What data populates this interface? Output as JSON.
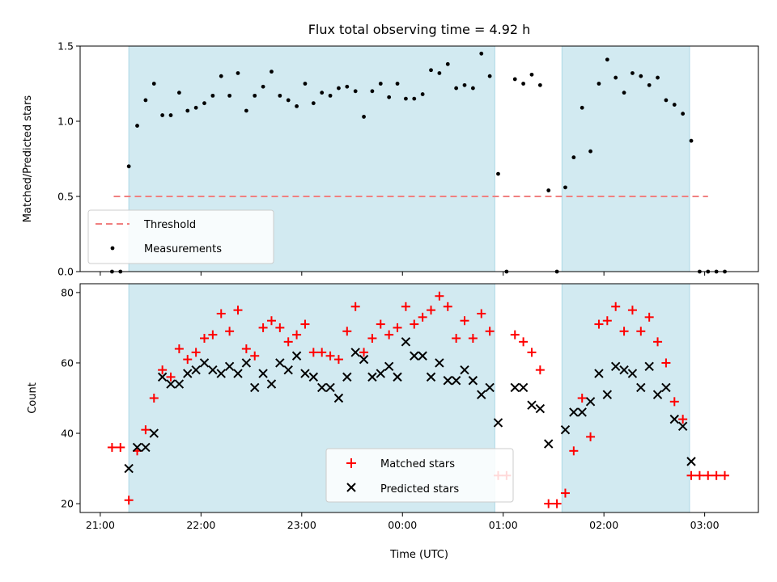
{
  "chart_data": {
    "title": "Flux total observing time = 4.92 h",
    "xlabel": "Time (UTC)",
    "x_ticks": [
      "21:00",
      "22:00",
      "23:00",
      "00:00",
      "01:00",
      "02:00",
      "03:00"
    ],
    "x_tick_minutes": [
      0,
      60,
      120,
      180,
      240,
      300,
      360
    ],
    "x_range_minutes": [
      -12,
      392
    ],
    "shaded_intervals": [
      [
        "21:17",
        "00:55"
      ],
      [
        "01:35",
        "02:51"
      ]
    ],
    "shade_color": "#add8e6",
    "panels": [
      {
        "type": "scatter",
        "ylabel": "Matched/Predicted stars",
        "ylim": [
          0,
          1.5
        ],
        "yticks": [
          0.0,
          0.5,
          1.0,
          1.5
        ],
        "y_tick_labels": [
          "0.0",
          "0.5",
          "1.0",
          "1.5"
        ],
        "legend_position": "lower-left",
        "threshold": {
          "name": "Threshold",
          "value": 0.5,
          "x_start": "21:08",
          "x_end": "03:02",
          "color": "#f08080"
        },
        "series": [
          {
            "name": "Measurements",
            "marker": "dot",
            "color": "#000000",
            "x": [
              "21:07",
              "21:12",
              "21:17",
              "21:22",
              "21:27",
              "21:32",
              "21:37",
              "21:42",
              "21:47",
              "21:52",
              "21:57",
              "22:02",
              "22:07",
              "22:12",
              "22:17",
              "22:22",
              "22:27",
              "22:32",
              "22:37",
              "22:42",
              "22:47",
              "22:52",
              "22:57",
              "23:02",
              "23:07",
              "23:12",
              "23:17",
              "23:22",
              "23:27",
              "23:32",
              "23:37",
              "23:42",
              "23:47",
              "23:52",
              "23:57",
              "00:02",
              "00:07",
              "00:12",
              "00:17",
              "00:22",
              "00:27",
              "00:32",
              "00:37",
              "00:42",
              "00:47",
              "00:52",
              "00:57",
              "01:02",
              "01:07",
              "01:12",
              "01:17",
              "01:22",
              "01:27",
              "01:32",
              "01:37",
              "01:42",
              "01:47",
              "01:52",
              "01:57",
              "02:02",
              "02:07",
              "02:12",
              "02:17",
              "02:22",
              "02:27",
              "02:32",
              "02:37",
              "02:42",
              "02:47",
              "02:52",
              "02:57",
              "03:02",
              "03:07",
              "03:12"
            ],
            "y": [
              0.0,
              0.0,
              0.7,
              0.97,
              1.14,
              1.25,
              1.04,
              1.04,
              1.19,
              1.07,
              1.09,
              1.12,
              1.17,
              1.3,
              1.17,
              1.32,
              1.07,
              1.17,
              1.23,
              1.33,
              1.17,
              1.14,
              1.1,
              1.25,
              1.12,
              1.19,
              1.17,
              1.22,
              1.23,
              1.2,
              1.03,
              1.2,
              1.25,
              1.16,
              1.25,
              1.15,
              1.15,
              1.18,
              1.34,
              1.32,
              1.38,
              1.22,
              1.24,
              1.22,
              1.45,
              1.3,
              0.65,
              0.0,
              1.28,
              1.25,
              1.31,
              1.24,
              0.54,
              0.0,
              0.56,
              0.76,
              1.09,
              0.8,
              1.25,
              1.41,
              1.29,
              1.19,
              1.32,
              1.3,
              1.24,
              1.29,
              1.14,
              1.11,
              1.05,
              0.87,
              0.0,
              0.0,
              0.0,
              0.0
            ]
          }
        ]
      },
      {
        "type": "scatter",
        "ylabel": "Count",
        "ylim": [
          17.5,
          82.5
        ],
        "yticks": [
          20,
          40,
          60,
          80
        ],
        "y_tick_labels": [
          "20",
          "40",
          "60",
          "80"
        ],
        "legend_position": "lower-center",
        "series": [
          {
            "name": "Matched stars",
            "marker": "plus",
            "color": "#ff0000",
            "x": [
              "21:07",
              "21:12",
              "21:17",
              "21:22",
              "21:27",
              "21:32",
              "21:37",
              "21:42",
              "21:47",
              "21:52",
              "21:57",
              "22:02",
              "22:07",
              "22:12",
              "22:17",
              "22:22",
              "22:27",
              "22:32",
              "22:37",
              "22:42",
              "22:47",
              "22:52",
              "22:57",
              "23:02",
              "23:07",
              "23:12",
              "23:17",
              "23:22",
              "23:27",
              "23:32",
              "23:37",
              "23:42",
              "23:47",
              "23:52",
              "23:57",
              "00:02",
              "00:07",
              "00:12",
              "00:17",
              "00:22",
              "00:27",
              "00:32",
              "00:37",
              "00:42",
              "00:47",
              "00:52",
              "00:57",
              "01:02",
              "01:07",
              "01:12",
              "01:17",
              "01:22",
              "01:27",
              "01:32",
              "01:37",
              "01:42",
              "01:47",
              "01:52",
              "01:57",
              "02:02",
              "02:07",
              "02:12",
              "02:17",
              "02:22",
              "02:27",
              "02:32",
              "02:37",
              "02:42",
              "02:47",
              "02:52",
              "02:57",
              "03:02",
              "03:07",
              "03:12"
            ],
            "y": [
              36,
              36,
              21,
              35,
              41,
              50,
              58,
              56,
              64,
              61,
              63,
              67,
              68,
              74,
              69,
              75,
              64,
              62,
              70,
              72,
              70,
              66,
              68,
              71,
              63,
              63,
              62,
              61,
              69,
              76,
              63,
              67,
              71,
              68,
              70,
              76,
              71,
              73,
              75,
              79,
              76,
              67,
              72,
              67,
              74,
              69,
              28,
              28,
              68,
              66,
              63,
              58,
              20,
              20,
              23,
              35,
              50,
              39,
              71,
              72,
              76,
              69,
              75,
              69,
              73,
              66,
              60,
              49,
              44,
              28,
              28,
              28,
              28,
              28
            ]
          },
          {
            "name": "Predicted stars",
            "marker": "x",
            "color": "#000000",
            "x": [
              "21:17",
              "21:22",
              "21:27",
              "21:32",
              "21:37",
              "21:42",
              "21:47",
              "21:52",
              "21:57",
              "22:02",
              "22:07",
              "22:12",
              "22:17",
              "22:22",
              "22:27",
              "22:32",
              "22:37",
              "22:42",
              "22:47",
              "22:52",
              "22:57",
              "23:02",
              "23:07",
              "23:12",
              "23:17",
              "23:22",
              "23:27",
              "23:32",
              "23:37",
              "23:42",
              "23:47",
              "23:52",
              "23:57",
              "00:02",
              "00:07",
              "00:12",
              "00:17",
              "00:22",
              "00:27",
              "00:32",
              "00:37",
              "00:42",
              "00:47",
              "00:52",
              "00:57",
              "01:07",
              "01:12",
              "01:17",
              "01:22",
              "01:27",
              "01:37",
              "01:42",
              "01:47",
              "01:52",
              "01:57",
              "02:02",
              "02:07",
              "02:12",
              "02:17",
              "02:22",
              "02:27",
              "02:32",
              "02:37",
              "02:42",
              "02:47",
              "02:52"
            ],
            "y": [
              30,
              36,
              36,
              40,
              56,
              54,
              54,
              57,
              58,
              60,
              58,
              57,
              59,
              57,
              60,
              53,
              57,
              54,
              60,
              58,
              62,
              57,
              56,
              53,
              53,
              50,
              56,
              63,
              61,
              56,
              57,
              59,
              56,
              66,
              62,
              62,
              56,
              60,
              55,
              55,
              58,
              55,
              51,
              53,
              43,
              53,
              53,
              48,
              47,
              37,
              41,
              46,
              46,
              49,
              57,
              51,
              59,
              58,
              57,
              53,
              59,
              51,
              53,
              44,
              42,
              32
            ]
          }
        ]
      }
    ]
  }
}
